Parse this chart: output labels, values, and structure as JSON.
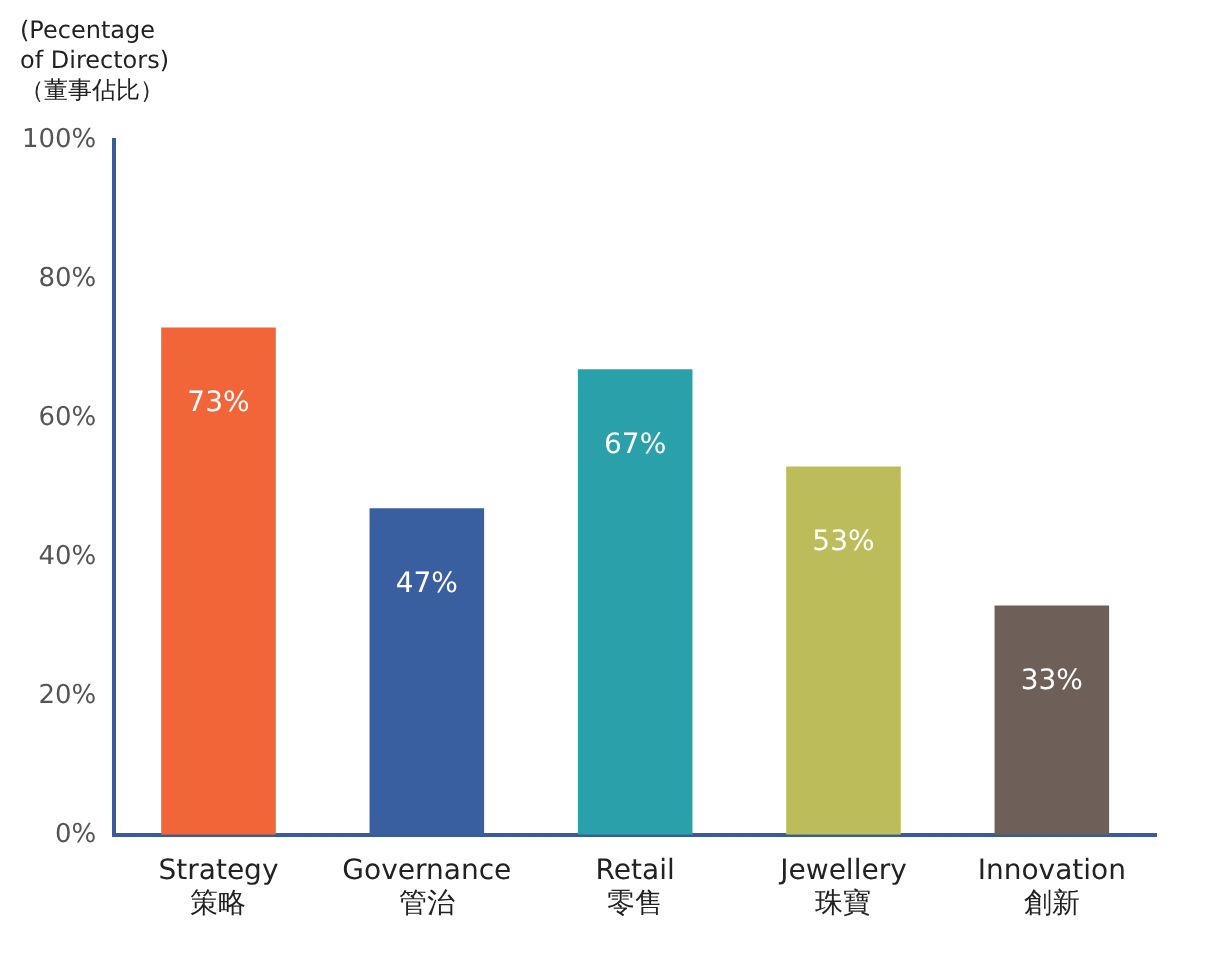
{
  "chart_data": {
    "type": "bar",
    "ylabel": "(Pecentage\nof Directors)\n（董事佔比）",
    "categories": [
      "Strategy\n策略",
      "Governance\n管治",
      "Retail\n零售",
      "Jewellery\n珠寶",
      "Innovation\n創新"
    ],
    "values": [
      73,
      47,
      67,
      53,
      33
    ],
    "colors": [
      "#f26539",
      "#3a5fa0",
      "#2aa0aa",
      "#bcbd5a",
      "#6e5f59"
    ],
    "value_labels": [
      "73%",
      "47%",
      "67%",
      "53%",
      "33%"
    ],
    "ylim": [
      0,
      100
    ],
    "yticks": [
      {
        "value": 0,
        "label": "0%"
      },
      {
        "value": 20,
        "label": "20%"
      },
      {
        "value": 40,
        "label": "40%"
      },
      {
        "value": 60,
        "label": "60%"
      },
      {
        "value": 80,
        "label": "80%"
      },
      {
        "value": 100,
        "label": "100%"
      }
    ],
    "grid": false,
    "legend": false
  }
}
